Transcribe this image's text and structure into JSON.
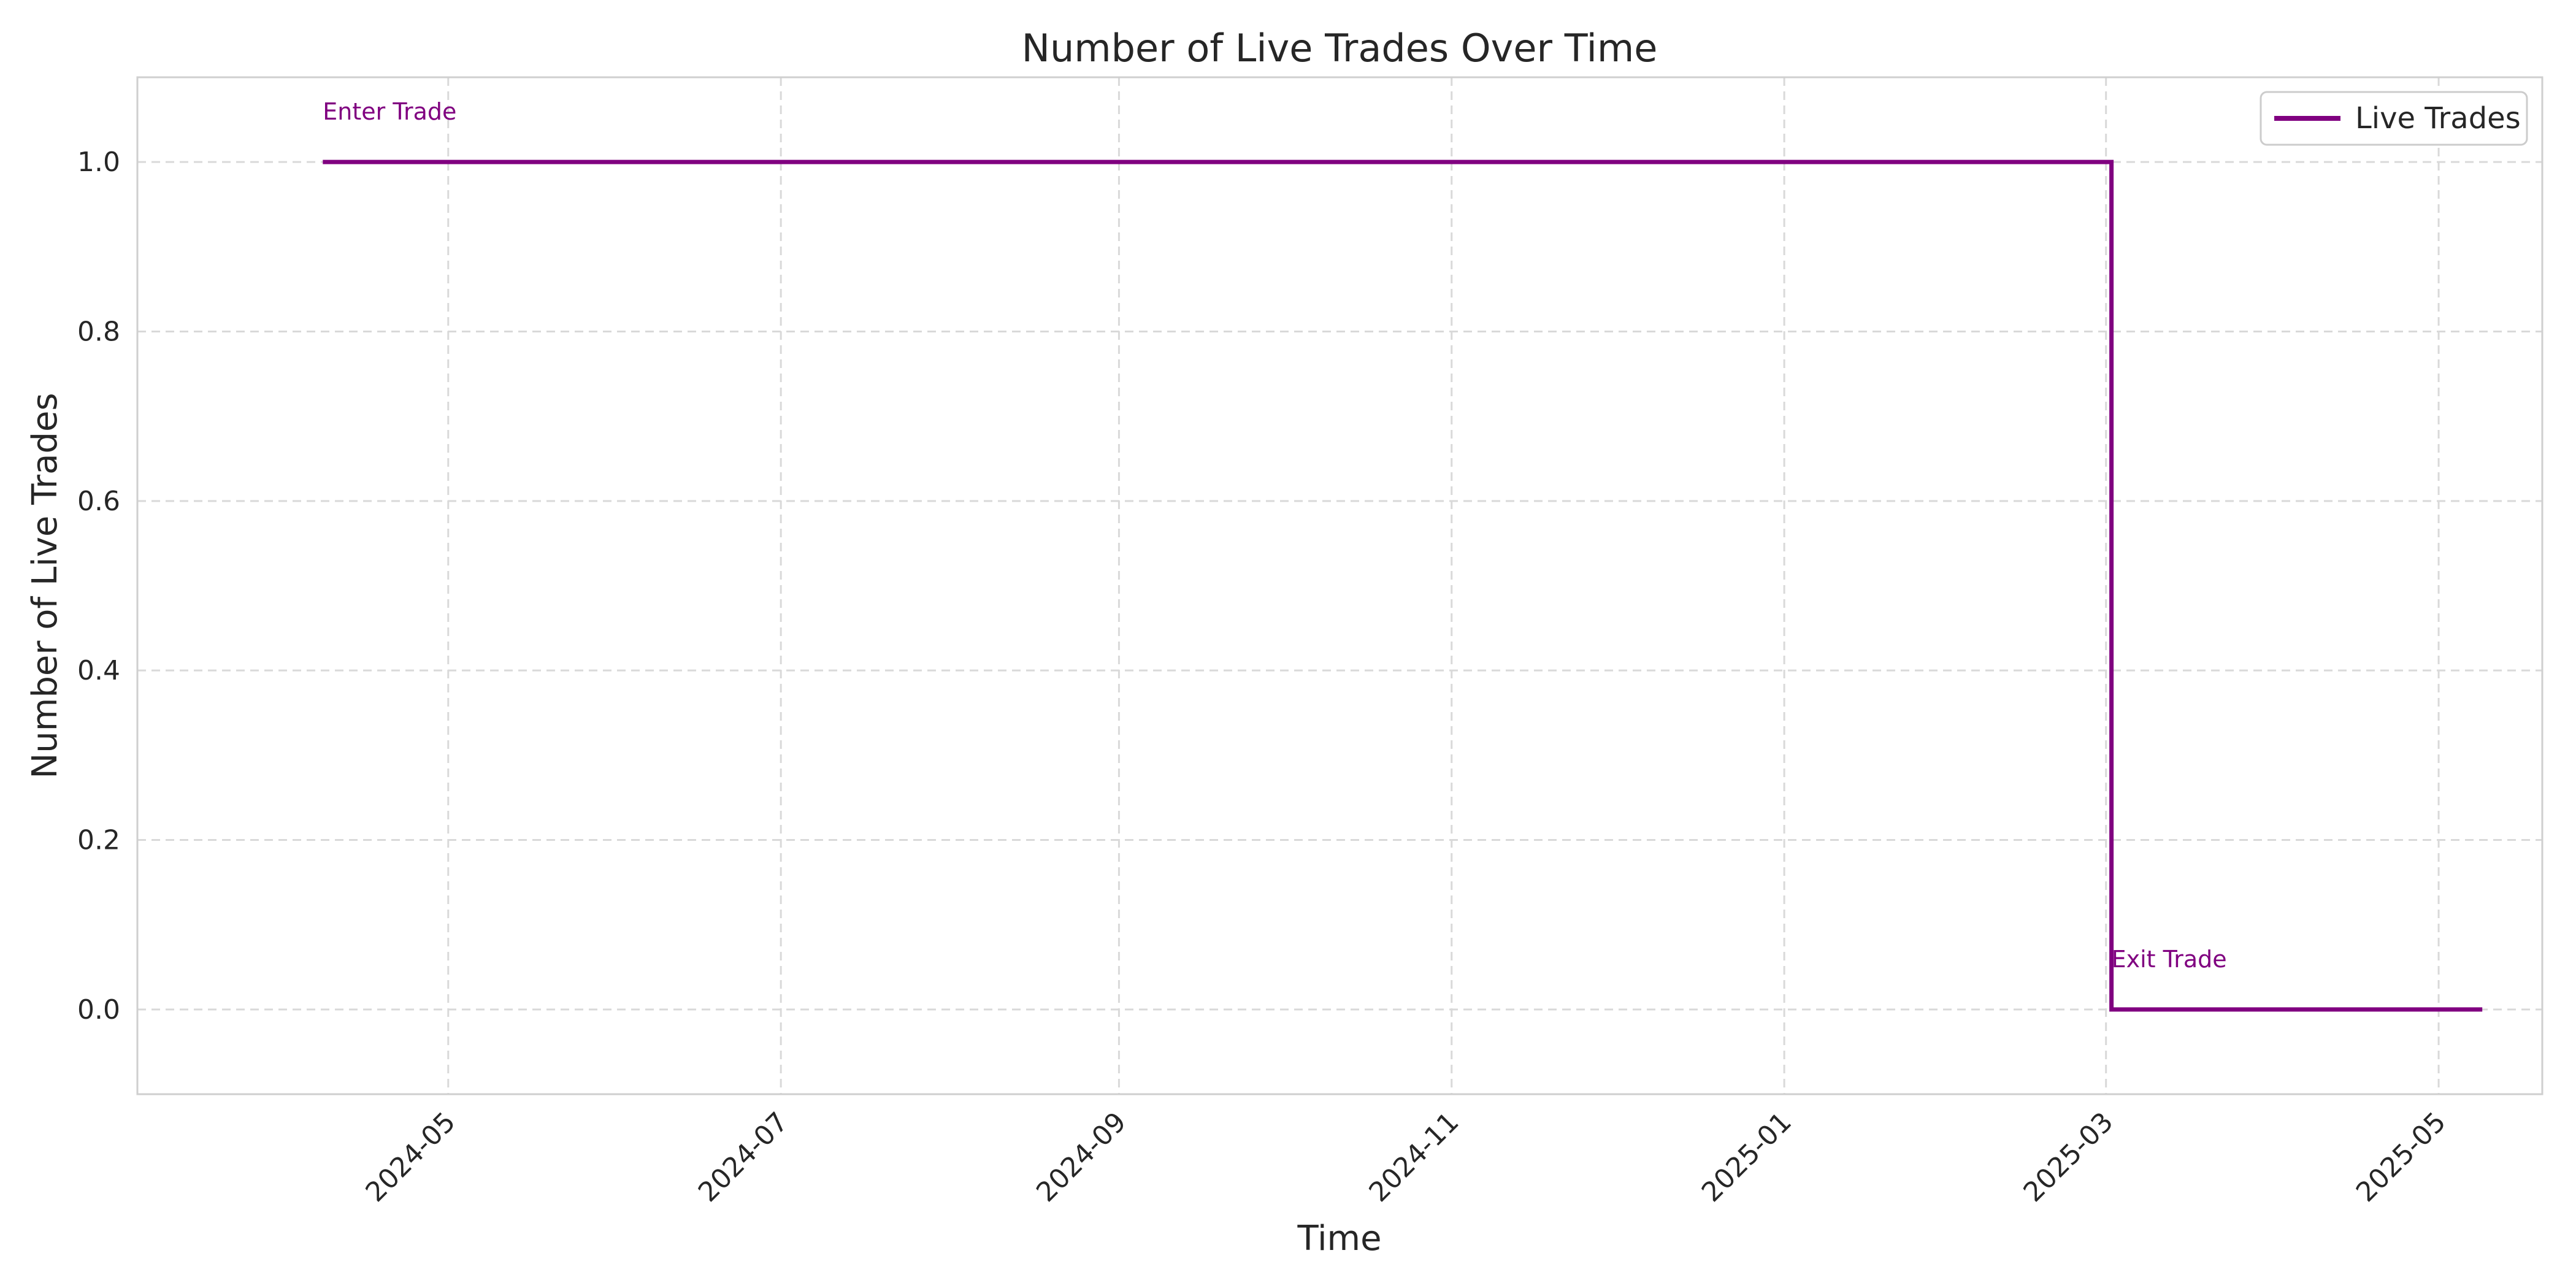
{
  "chart_data": {
    "type": "line",
    "title": "Number of Live Trades Over Time",
    "xlabel": "Time",
    "ylabel": "Number of Live Trades",
    "x_axis_type": "date",
    "xlim": [
      "2024-03-05",
      "2025-05-20"
    ],
    "ylim": [
      -0.1,
      1.1
    ],
    "x_ticks": [
      "2024-05-01",
      "2024-07-01",
      "2024-09-01",
      "2024-11-01",
      "2025-01-01",
      "2025-03-01",
      "2025-05-01"
    ],
    "x_tick_labels": [
      "2024-05",
      "2024-07",
      "2024-09",
      "2024-11",
      "2025-01",
      "2025-03",
      "2025-05"
    ],
    "y_ticks": [
      0.0,
      0.2,
      0.4,
      0.6,
      0.8,
      1.0
    ],
    "y_tick_labels": [
      "0.0",
      "0.2",
      "0.4",
      "0.6",
      "0.8",
      "1.0"
    ],
    "grid": true,
    "legend_position": "top-right",
    "series": [
      {
        "name": "Live Trades",
        "color": "#800080",
        "step": "post",
        "points": [
          {
            "x": "2024-04-08",
            "y": 1
          },
          {
            "x": "2025-03-02",
            "y": 0
          },
          {
            "x": "2025-05-09",
            "y": 0
          }
        ]
      }
    ],
    "annotations": [
      {
        "text": "Enter Trade",
        "x": "2024-04-08",
        "y": 1.05,
        "color": "#800080"
      },
      {
        "text": "Exit Trade",
        "x": "2025-03-02",
        "y": 0.05,
        "color": "#800080"
      }
    ]
  }
}
